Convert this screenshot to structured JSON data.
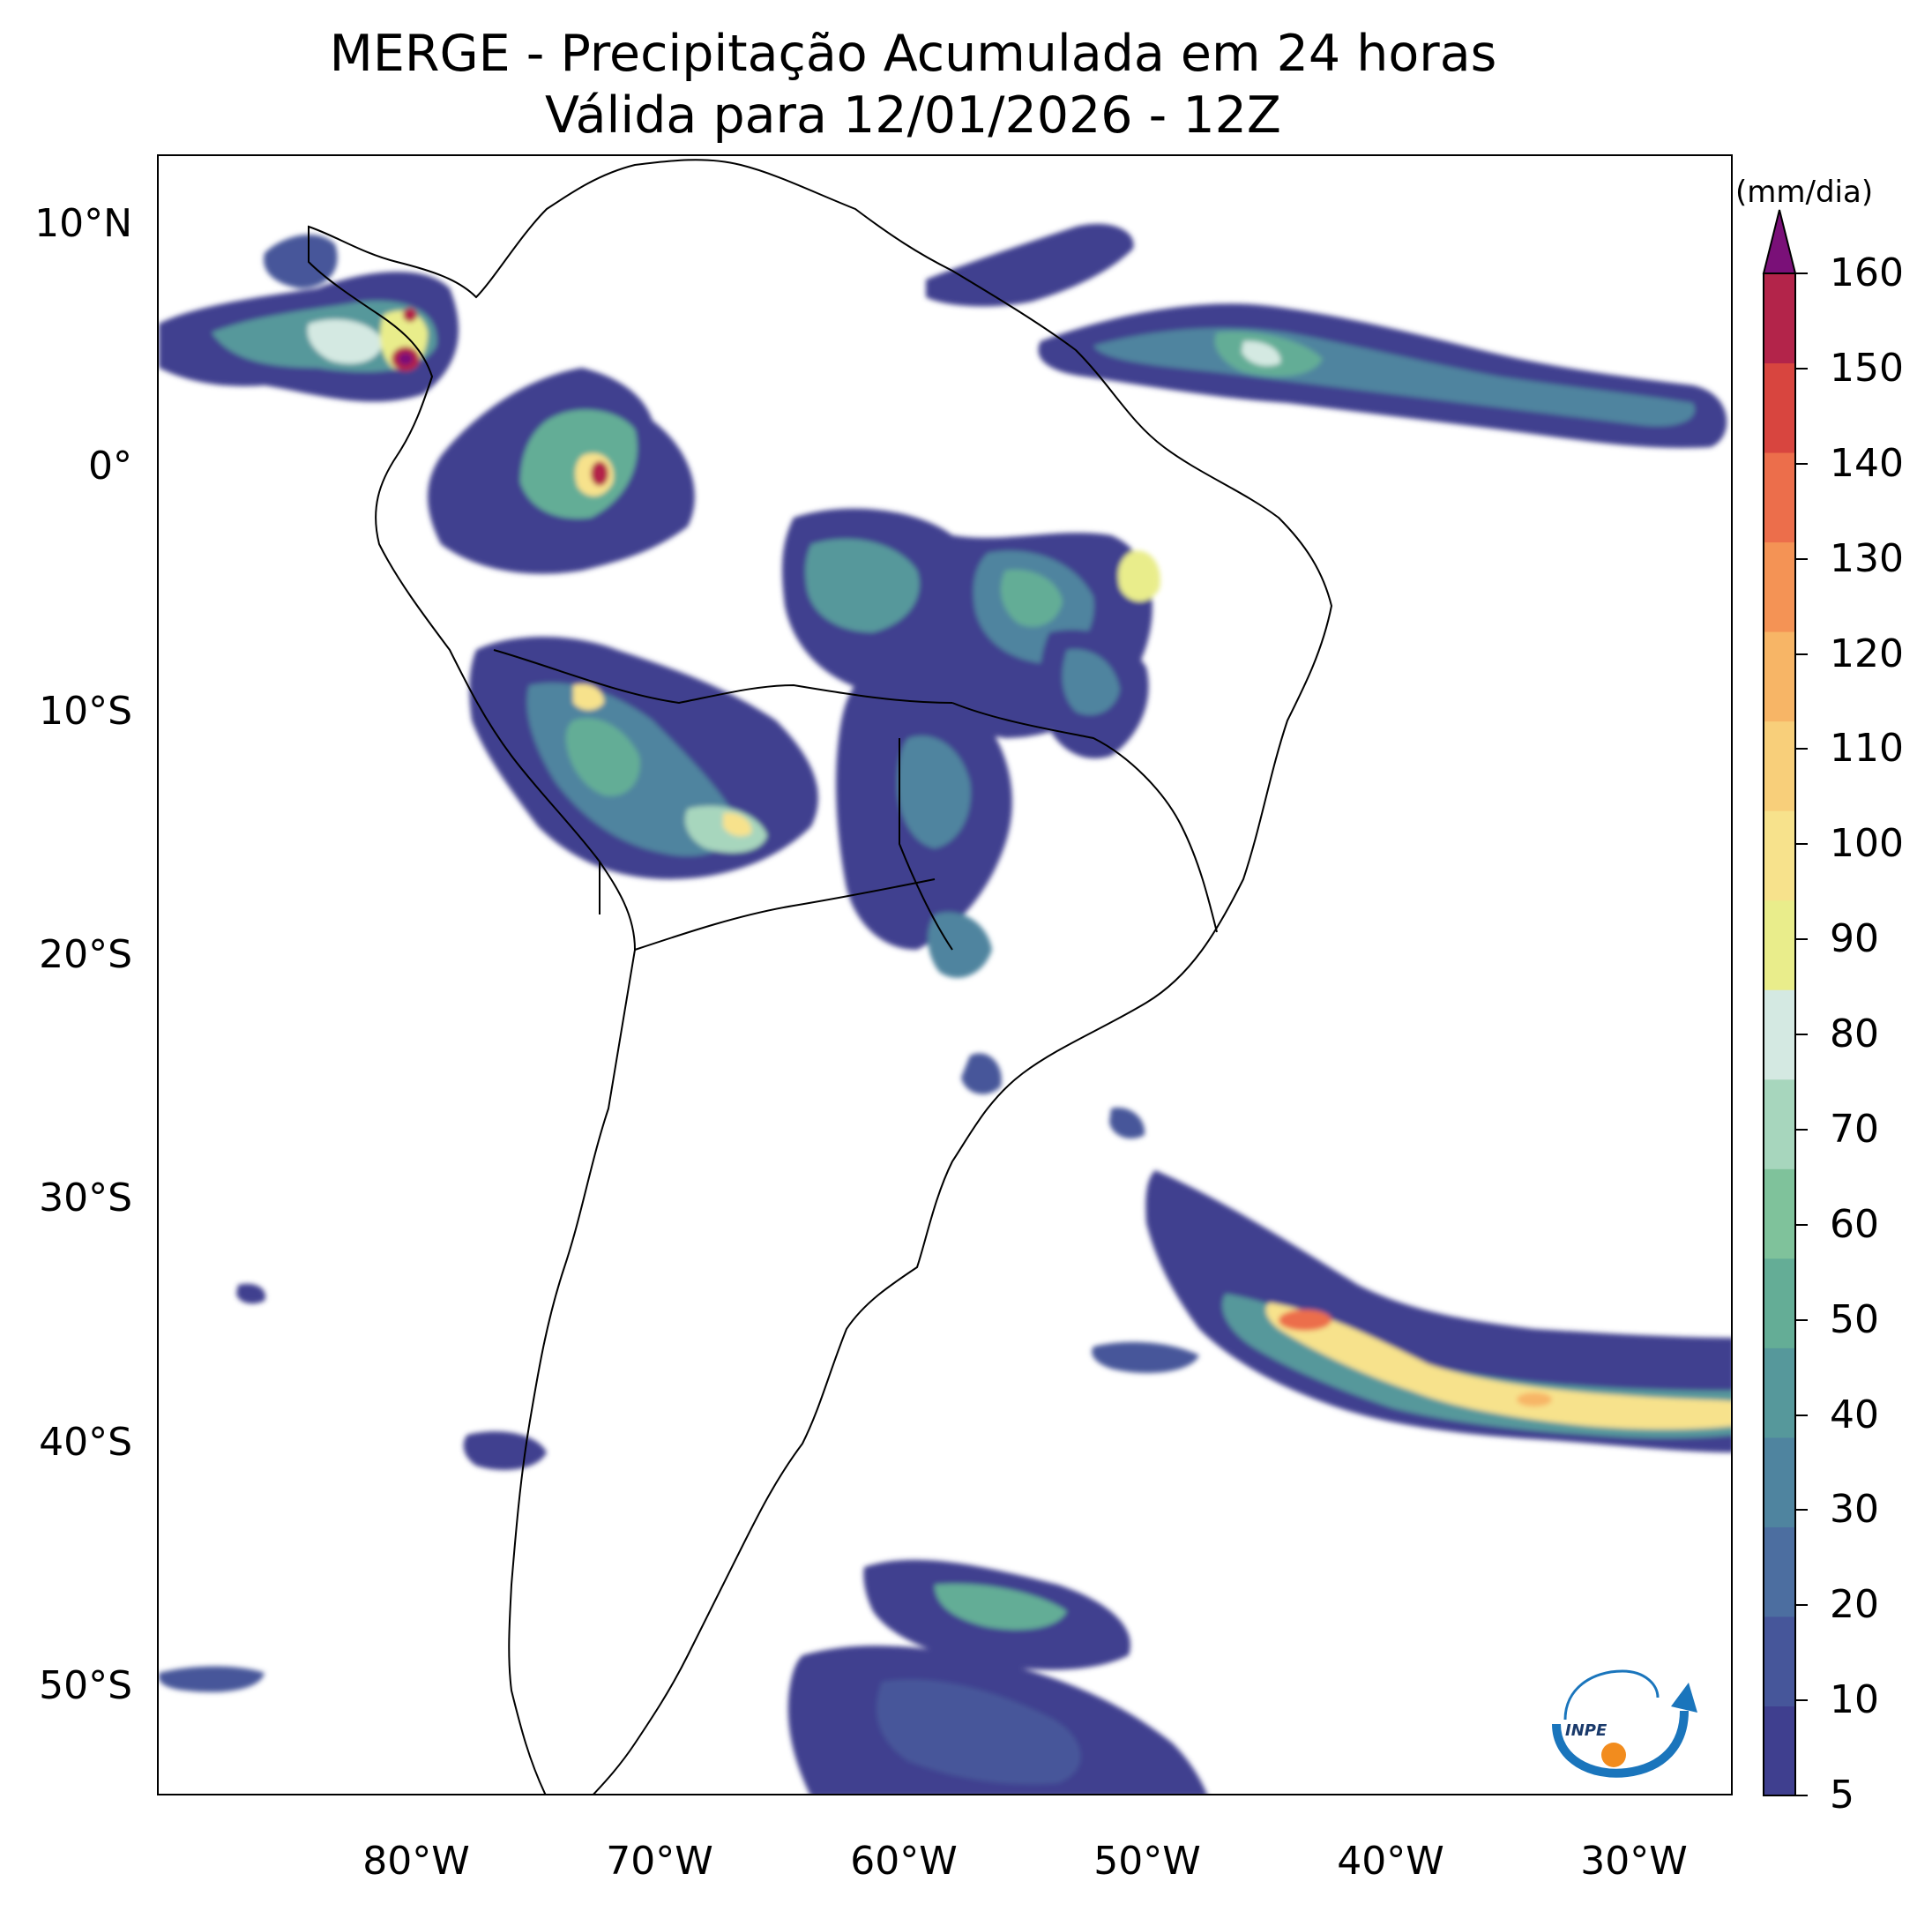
{
  "title": {
    "line1": "MERGE - Precipitação Acumulada em 24 horas",
    "line2": "Válida para 12/01/2026 - 12Z"
  },
  "axes": {
    "lat_labels": [
      "10°N",
      "0°",
      "10°S",
      "20°S",
      "30°S",
      "40°S",
      "50°S"
    ],
    "lon_labels": [
      "80°W",
      "70°W",
      "60°W",
      "50°W",
      "40°W",
      "30°W"
    ]
  },
  "colorbar": {
    "unit": "(mm/dia)",
    "labels": [
      "5",
      "10",
      "20",
      "30",
      "40",
      "50",
      "60",
      "70",
      "80",
      "90",
      "100",
      "110",
      "120",
      "130",
      "140",
      "150",
      "160"
    ],
    "colors": [
      "#3f3f8f",
      "#46569a",
      "#4c6ea0",
      "#4f849f",
      "#56989b",
      "#64ad96",
      "#7fc29b",
      "#a7d6bd",
      "#d4e9e2",
      "#e9ed8b",
      "#f7e28c",
      "#f8cf7a",
      "#f7b566",
      "#f49355",
      "#ec6e4b",
      "#d8453f",
      "#b3244a"
    ],
    "extend_color": "#7a1078"
  },
  "logo": {
    "text": "INPE"
  },
  "colors": {
    "land_outline": "#000000",
    "ocean": "#ffffff"
  }
}
